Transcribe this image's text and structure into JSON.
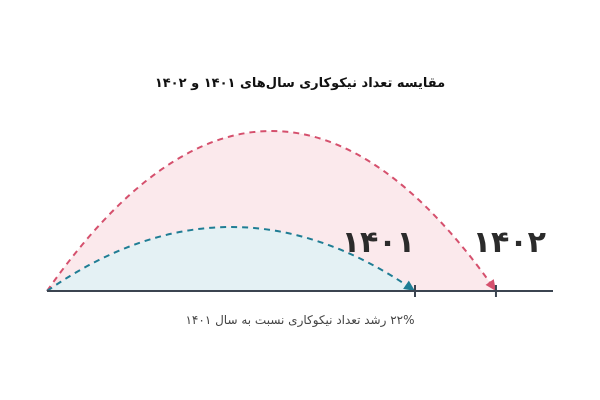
{
  "chart_data": {
    "type": "arc",
    "title": "مقایسه تعداد نیکوکاری سال‌های ۱۴۰۱ و ۱۴۰۲",
    "caption": "۲۲% رشد تعداد نیکوکاری نسبت به سال ۱۴۰۱",
    "categories": [
      "۱۴۰۱",
      "۱۴۰۲"
    ],
    "values": [
      100,
      122
    ],
    "colors": [
      "#1f7d94",
      "#d5506d"
    ],
    "fills": [
      "#e4f1f4",
      "#fbe9ec"
    ],
    "xlim": [
      0,
      137.5
    ]
  }
}
